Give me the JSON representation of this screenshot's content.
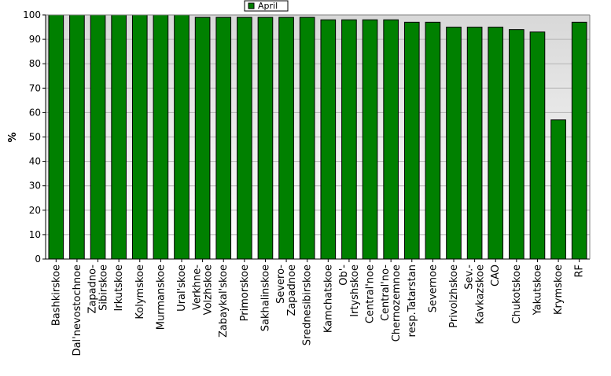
{
  "chart_data": {
    "type": "bar",
    "title": "",
    "xlabel": "",
    "ylabel": "%",
    "ylim": [
      0,
      100
    ],
    "yticks": [
      0,
      10,
      20,
      30,
      40,
      50,
      60,
      70,
      80,
      90,
      100
    ],
    "grid": true,
    "legend_position": "top",
    "categories": [
      "Bashkirskoe",
      "Dal'nevostochnoe",
      "Zapadno-\nSibirskoe",
      "Irkutskoe",
      "Kolymskoe",
      "Murmanskoe",
      "Ural'skoe",
      "Verkhne-\nVolzhskoe",
      "Zabaykal'skoe",
      "Primorskoe",
      "Sakhalinskoe",
      "Severo-\nZapadnoe",
      "Srednesibirskoe",
      "Kamchatskoe",
      "Ob'-\nIrtyshskoe",
      "Central'noe",
      "Central'no-\nChernozemnoe",
      "resp.Tatarstan",
      "Severnoe",
      "Privolzhskoe",
      "Sev.-\nKavkazskoe",
      "CAO",
      "Chukotskoe",
      "Yakutskoe",
      "Krymskoe",
      "RF"
    ],
    "series": [
      {
        "name": "April",
        "color": "#008000",
        "values": [
          100,
          100,
          100,
          100,
          100,
          100,
          100,
          99,
          99,
          99,
          99,
          99,
          99,
          98,
          98,
          98,
          98,
          97,
          97,
          95,
          95,
          95,
          94,
          93,
          57,
          97
        ]
      }
    ]
  },
  "colors": {
    "plot_background_top": "#d8d8d8",
    "plot_background_bottom": "#ffffff",
    "gridline": "#b4b4b4",
    "bar_fill": "#008000",
    "bar_stroke": "#000000"
  }
}
